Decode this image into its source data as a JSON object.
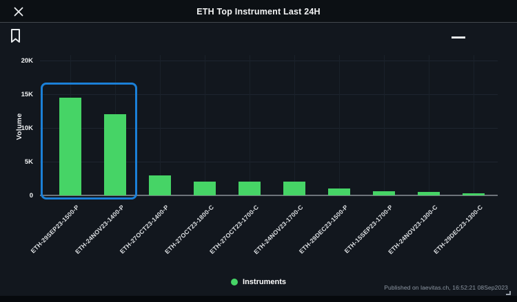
{
  "header": {
    "title": "ETH Top Instrument Last 24H"
  },
  "chart_data": {
    "type": "bar",
    "title": "ETH Top Instrument Last 24H",
    "xlabel": "",
    "ylabel": "Volume",
    "ylim": [
      0,
      20000
    ],
    "yticks": [
      "0",
      "5K",
      "10K",
      "15K",
      "20K"
    ],
    "grid": true,
    "legend_position": "bottom",
    "categories": [
      "ETH-29SEP23-1500-P",
      "ETH-24NOV23-1400-P",
      "ETH-27OCT23-1400-P",
      "ETH-27OCT23-1800-C",
      "ETH-27OCT23-1700-C",
      "ETH-24NOV23-1700-C",
      "ETH-29DEC23-1500-P",
      "ETH-15SEP23-1700-P",
      "ETH-24NOV23-1300-C",
      "ETH-29DEC23-1300-C"
    ],
    "values": [
      14500,
      12000,
      3000,
      2000,
      2000,
      2000,
      1000,
      650,
      500,
      300
    ],
    "series_name": "Instruments",
    "legend": [
      {
        "label": "Instruments",
        "color": "#46d466"
      }
    ],
    "selection": {
      "indices": [
        0,
        1
      ],
      "color": "#1b80d8"
    }
  },
  "footer": {
    "published": "Published on laevitas.ch, 16:52:21 08Sep2023"
  },
  "colors": {
    "bar_green": "#46d466",
    "selection_blue": "#1b80d8",
    "background": "#12171e",
    "topbar": "#0c1014"
  }
}
